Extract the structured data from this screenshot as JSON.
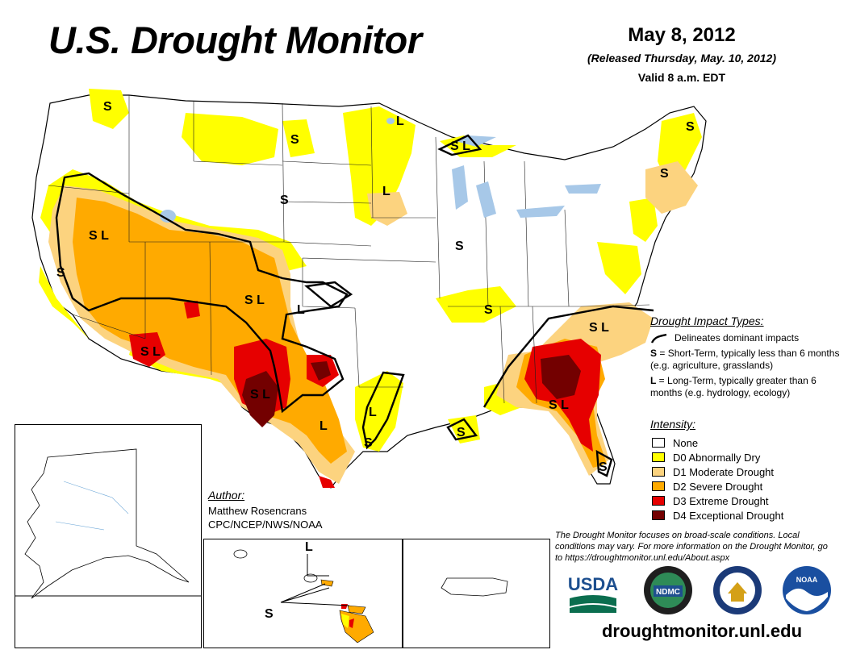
{
  "header": {
    "title": "U.S. Drought Monitor",
    "date": "May 8, 2012",
    "released": "(Released Thursday, May. 10, 2012)",
    "valid": "Valid 8 a.m. EDT"
  },
  "colors": {
    "none": "#ffffff",
    "d0": "#ffff00",
    "d1": "#fcd37f",
    "d2": "#ffaa00",
    "d3": "#e60000",
    "d4": "#730000"
  },
  "impact_legend": {
    "heading": "Drought Impact Types:",
    "line_desc": "Delineates dominant impacts",
    "short_sym": "S",
    "short_desc": " = Short-Term, typically less than 6 months (e.g. agriculture, grasslands)",
    "long_sym": "L",
    "long_desc": " = Long-Term, typically greater than 6 months (e.g. hydrology, ecology)"
  },
  "intensity_legend": {
    "heading": "Intensity:",
    "items": [
      {
        "label": "None",
        "color": "#ffffff"
      },
      {
        "label": "D0 Abnormally Dry",
        "color": "#ffff00"
      },
      {
        "label": "D1 Moderate Drought",
        "color": "#fcd37f"
      },
      {
        "label": "D2 Severe Drought",
        "color": "#ffaa00"
      },
      {
        "label": "D3 Extreme Drought",
        "color": "#e60000"
      },
      {
        "label": "D4 Exceptional Drought",
        "color": "#730000"
      }
    ]
  },
  "author": {
    "heading": "Author:",
    "name": "Matthew Rosencrans",
    "org": "CPC/NCEP/NWS/NOAA"
  },
  "disclaimer": "The Drought Monitor focuses on broad-scale conditions. Local conditions may vary. For more information on the Drought Monitor, go to https://droughtmonitor.unl.edu/About.aspx",
  "logos": {
    "usda": "USDA",
    "ndmc": "NDMC",
    "noaa": "NOAA"
  },
  "url": "droughtmonitor.unl.edu",
  "map_labels": {
    "sl_west": "S L",
    "s_ca": "S",
    "s_mt": "S",
    "s_nd": "S",
    "s_sd": "S",
    "l_mn": "L",
    "l_mn2": "L",
    "sl_mi": "S L",
    "s_ny": "S",
    "s_nh": "S",
    "s_il": "S",
    "s_ky": "S",
    "sl_co": "S L",
    "l_ok": "L",
    "sl_az": "S L",
    "sl_tx": "S L",
    "l_tx": "L",
    "l_la": "L",
    "s_la": "S",
    "s_gom": "S",
    "sl_nc": "S L",
    "sl_ga": "S L",
    "s_fl": "S",
    "l_hi": "L",
    "s_hi": "S"
  }
}
